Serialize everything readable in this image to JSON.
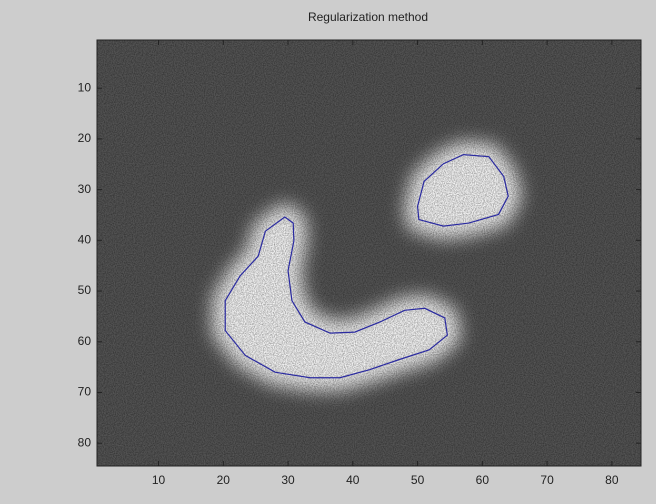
{
  "chart_data": {
    "type": "contour",
    "title": "Regularization method",
    "xlim": [
      0.5,
      84.5
    ],
    "ylim": [
      0.5,
      84.5
    ],
    "y_reversed": true,
    "xticks": [
      10,
      20,
      30,
      40,
      50,
      60,
      70,
      80
    ],
    "yticks": [
      10,
      20,
      30,
      40,
      50,
      60,
      70,
      80
    ],
    "series": [
      {
        "color": "#2a2aa0",
        "x": [
          50.0,
          51.0,
          54.0,
          57.1,
          61.0,
          63.3,
          64.0,
          62.5,
          57.9,
          54.0,
          50.2
        ],
        "y": [
          33.3,
          28.4,
          24.9,
          23.1,
          23.5,
          27.4,
          31.3,
          34.9,
          36.6,
          37.2,
          35.9
        ]
      },
      {
        "color": "#2a2aa0",
        "x": [
          29.5,
          26.5,
          25.4,
          22.6,
          20.3,
          20.3,
          23.4,
          28.0,
          33.4,
          38.0,
          42.6,
          47.2,
          51.8,
          54.6,
          54.2,
          51.1,
          48.0,
          44.2,
          40.3,
          36.5,
          32.6,
          30.6,
          30.0,
          30.9,
          30.8
        ],
        "y": [
          35.4,
          38.2,
          43.1,
          47.0,
          51.9,
          57.8,
          62.7,
          66.0,
          67.1,
          67.1,
          65.5,
          63.5,
          61.6,
          58.7,
          55.3,
          53.4,
          53.8,
          56.1,
          58.1,
          58.3,
          56.1,
          51.9,
          46.0,
          40.1,
          36.6
        ]
      }
    ]
  }
}
